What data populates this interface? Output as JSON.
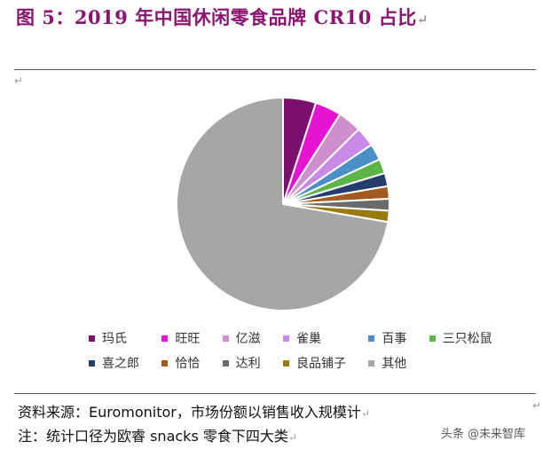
{
  "title": "图 5：2019 年中国休闲零食品牌 CR10 占比",
  "return_mark": "↵",
  "chart_data": {
    "type": "pie",
    "title": "",
    "series": [
      {
        "name": "玛氏",
        "value": 5.0,
        "color": "#7b0f6e"
      },
      {
        "name": "旺旺",
        "value": 4.0,
        "color": "#e614d2"
      },
      {
        "name": "亿滋",
        "value": 3.6,
        "color": "#cf8fcc"
      },
      {
        "name": "雀巢",
        "value": 3.0,
        "color": "#c78ae6"
      },
      {
        "name": "百事",
        "value": 2.5,
        "color": "#4a8fc7"
      },
      {
        "name": "三只松鼠",
        "value": 2.2,
        "color": "#5db548"
      },
      {
        "name": "喜之郎",
        "value": 2.0,
        "color": "#243d6b"
      },
      {
        "name": "恰恰",
        "value": 1.9,
        "color": "#a45a1e"
      },
      {
        "name": "达利",
        "value": 1.8,
        "color": "#6b6b6b"
      },
      {
        "name": "良品铺子",
        "value": 1.7,
        "color": "#9a7a0e"
      },
      {
        "name": "其他",
        "value": 72.3,
        "color": "#a6a6a6"
      }
    ],
    "legend_position": "bottom"
  },
  "footer": {
    "source_prefix": "资料来源：",
    "source_name": "Euromonitor",
    "source_suffix": "，市场份额以销售收入规模计",
    "note_prefix": "注：统计口径为欧睿 ",
    "note_term": "snacks",
    "note_suffix": " 零食下四大类"
  },
  "watermark": "头条 @未来智库"
}
